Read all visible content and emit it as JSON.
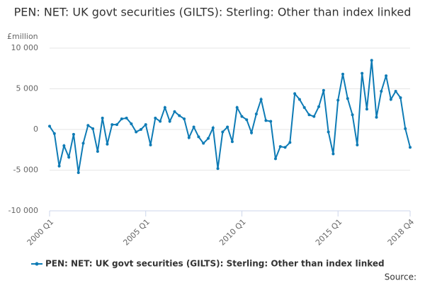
{
  "chart_data": {
    "type": "line",
    "title": "PEN: NET: UK govt securities (GILTS): Sterling: Other than index linked",
    "y_unit_label": "£million",
    "source": "Source:",
    "categories": [
      "2000 Q1",
      null,
      null,
      null,
      null,
      null,
      null,
      null,
      null,
      null,
      null,
      null,
      null,
      null,
      null,
      null,
      null,
      null,
      null,
      null,
      "2005 Q1",
      null,
      null,
      null,
      null,
      null,
      null,
      null,
      null,
      null,
      null,
      null,
      null,
      null,
      null,
      null,
      null,
      null,
      null,
      null,
      "2010 Q1",
      null,
      null,
      null,
      null,
      null,
      null,
      null,
      null,
      null,
      null,
      null,
      null,
      null,
      null,
      null,
      null,
      null,
      null,
      null,
      "2015 Q1",
      null,
      null,
      null,
      null,
      null,
      null,
      null,
      null,
      null,
      null,
      null,
      null,
      null,
      null,
      "2018 Q4"
    ],
    "series": [
      {
        "name": "PEN: NET: UK govt securities (GILTS): Sterling: Other than index linked",
        "color": "#0e7bb5",
        "values": [
          400,
          -500,
          -4500,
          -2000,
          -3400,
          -600,
          -5300,
          -1700,
          500,
          100,
          -2700,
          1400,
          -1800,
          600,
          600,
          1300,
          1400,
          700,
          -300,
          0,
          600,
          -1900,
          1400,
          1000,
          2700,
          1000,
          2200,
          1700,
          1300,
          -1000,
          300,
          -900,
          -1700,
          -1100,
          200,
          -4800,
          -300,
          300,
          -1500,
          2700,
          1600,
          1200,
          -400,
          1900,
          3700,
          1100,
          1000,
          -3600,
          -2100,
          -2200,
          -1600,
          4400,
          3700,
          2700,
          1800,
          1600,
          2800,
          4800,
          -300,
          -3000,
          3600,
          6800,
          3800,
          1800,
          -1900,
          6900,
          2500,
          8500,
          1500,
          4700,
          6600,
          3700,
          4700,
          3900,
          100,
          -2200
        ]
      }
    ],
    "ylim": [
      -10000,
      10000
    ],
    "yticks": [
      {
        "value": -10000,
        "label": "-10 000"
      },
      {
        "value": -5000,
        "label": "-5 000"
      },
      0,
      {
        "value": 5000,
        "label": "5 000"
      },
      {
        "value": 10000,
        "label": "10 000"
      }
    ],
    "grid": true,
    "legend": "bottom"
  }
}
